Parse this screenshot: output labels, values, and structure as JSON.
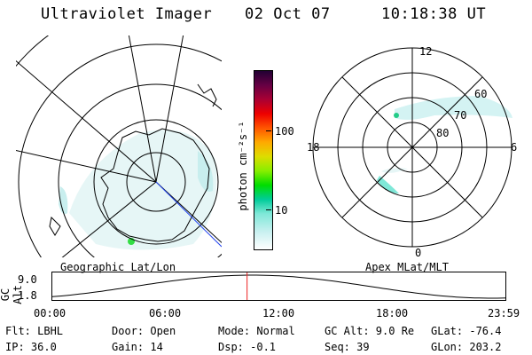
{
  "header": {
    "instrument": "Ultraviolet Imager",
    "date": "02 Oct 07",
    "time": "10:18:38 UT"
  },
  "geo_panel": {
    "label": "Geographic Lat/Lon"
  },
  "apex_panel": {
    "label": "Apex MLat/MLT",
    "mlt_labels": {
      "top": "12",
      "left": "18",
      "right": "6",
      "bottom": "0"
    },
    "lat_labels": [
      "60",
      "70",
      "80"
    ]
  },
  "colorbar": {
    "unit_label": "photon cm⁻²s⁻¹",
    "ticks": [
      "100",
      "10"
    ],
    "scale": "log",
    "colors": [
      "#ffffff",
      "#c8f0f0",
      "#7fe8d8",
      "#00cc99",
      "#00dd00",
      "#88ee00",
      "#dddd00",
      "#ffaa00",
      "#ff5500",
      "#ee0000",
      "#aa0033",
      "#660044",
      "#220033"
    ]
  },
  "altitude_plot": {
    "ylabel": "GC Alt",
    "y_ticks": [
      "9.0",
      "1.8"
    ],
    "x_ticks": [
      "00:00",
      "06:00",
      "12:00",
      "18:00",
      "23:59"
    ],
    "current_time_fraction": 0.429
  },
  "info": {
    "filter": "Flt: LBHL",
    "ip": "IP: 36.0",
    "door": "Door: Open",
    "gain": "Gain: 14",
    "mode": "Mode: Normal",
    "dsp": "Dsp:   -0.1",
    "gc_alt": "GC Alt: 9.0 Re",
    "seq": "Seq: 39",
    "glat": "GLat: -76.4",
    "glon": "GLon: 203.2"
  }
}
